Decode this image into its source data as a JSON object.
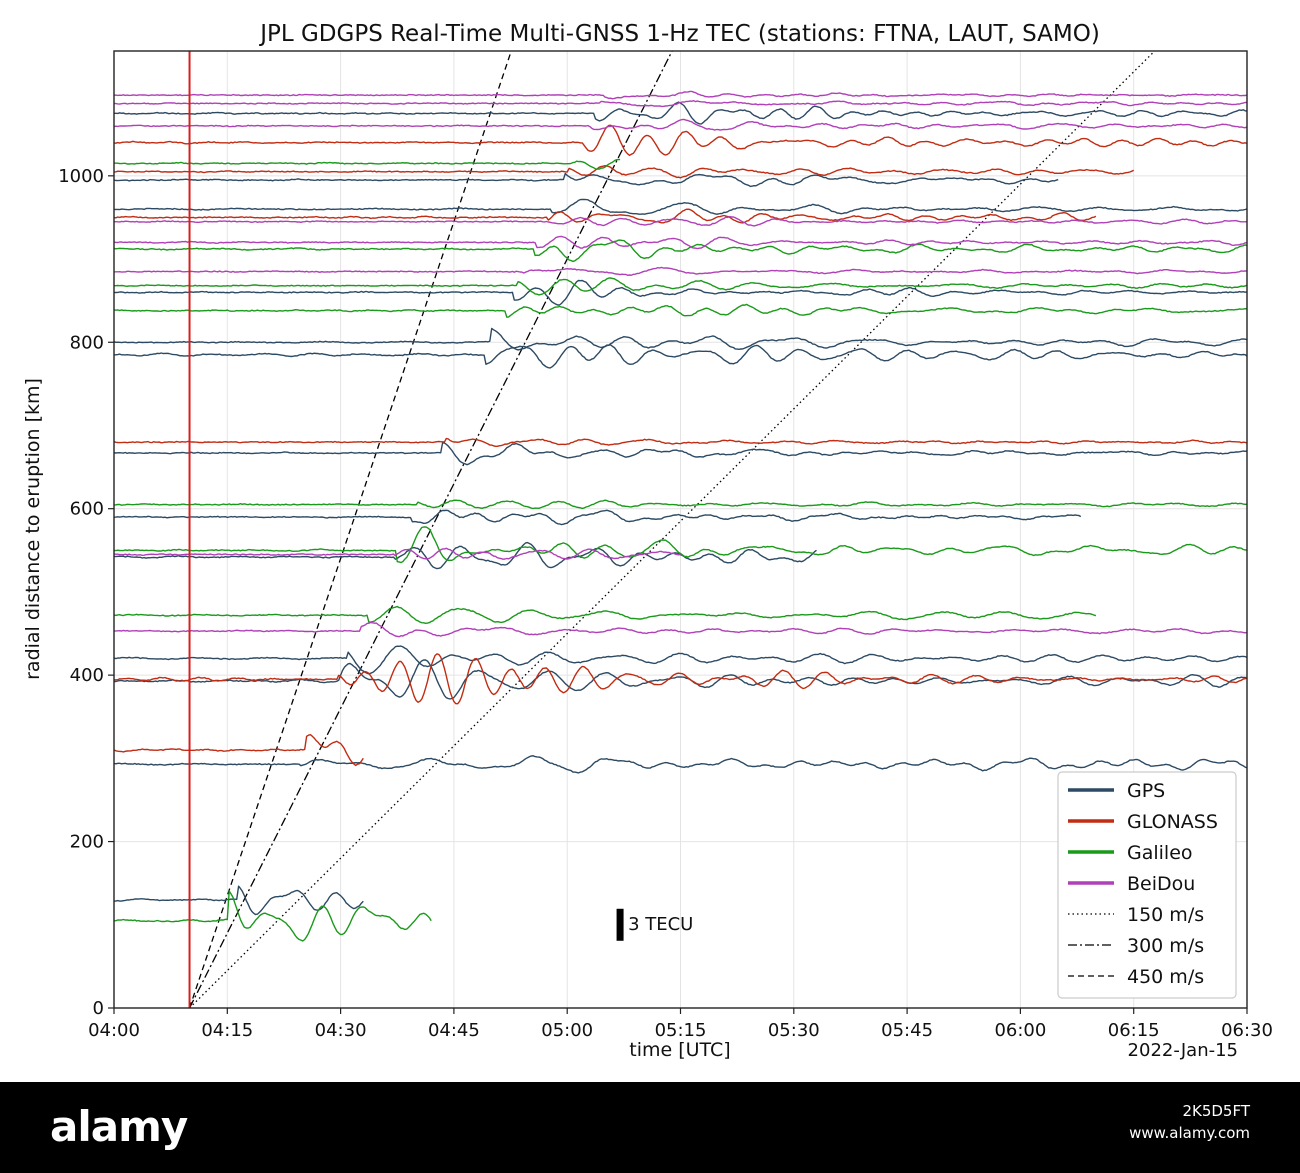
{
  "chart_data": {
    "type": "line",
    "title": "JPL GDGPS Real-Time Multi-GNSS 1-Hz TEC (stations: FTNA, LAUT, SAMO)",
    "xlabel": "time [UTC]",
    "ylabel": "radial distance to eruption [km]",
    "date_label": "2022-Jan-15",
    "xlim": [
      "04:00",
      "06:30"
    ],
    "ylim": [
      0,
      1150
    ],
    "x_ticks": [
      "04:00",
      "04:15",
      "04:30",
      "04:45",
      "05:00",
      "05:15",
      "05:30",
      "05:45",
      "06:00",
      "06:15",
      "06:30"
    ],
    "y_ticks": [
      0,
      200,
      400,
      600,
      800,
      1000
    ],
    "grid": true,
    "legend_position": "lower-right",
    "eruption_time": "04:10",
    "eruption_color": "#d62020",
    "scale_bar_label": "3 TECU",
    "scale_bar_time": "05:07",
    "scale_bar_center_km": 100,
    "colors": {
      "GPS": "#2c4a63",
      "GLONASS": "#c12c12",
      "Galileo": "#1a9a1a",
      "BeiDou": "#b040b8"
    },
    "speed_lines": [
      {
        "name": "150 m/s",
        "speed_mps": 150,
        "dash": "dotted"
      },
      {
        "name": "300 m/s",
        "speed_mps": 300,
        "dash": "dashdot"
      },
      {
        "name": "450 m/s",
        "speed_mps": 450,
        "dash": "dashed"
      }
    ],
    "series": [
      {
        "name": "GPS",
        "values": [
          {
            "distance_km": 130,
            "start": "04:00",
            "end": "04:33",
            "amplitude": 1.0
          },
          {
            "distance_km": 293,
            "start": "04:00",
            "end": "06:30",
            "amplitude": 1.0
          },
          {
            "distance_km": 393,
            "start": "04:00",
            "end": "06:30",
            "amplitude": 1.2
          },
          {
            "distance_km": 420,
            "start": "04:00",
            "end": "06:30",
            "amplitude": 1.2
          },
          {
            "distance_km": 542,
            "start": "04:00",
            "end": "05:33",
            "amplitude": 1.0
          },
          {
            "distance_km": 590,
            "start": "04:00",
            "end": "06:08",
            "amplitude": 0.8
          },
          {
            "distance_km": 667,
            "start": "04:00",
            "end": "06:30",
            "amplitude": 0.5
          },
          {
            "distance_km": 785,
            "start": "04:00",
            "end": "06:30",
            "amplitude": 1.0
          },
          {
            "distance_km": 800,
            "start": "04:00",
            "end": "06:30",
            "amplitude": 0.6
          },
          {
            "distance_km": 860,
            "start": "04:00",
            "end": "06:30",
            "amplitude": 0.6
          },
          {
            "distance_km": 960,
            "start": "04:00",
            "end": "06:30",
            "amplitude": 0.6
          },
          {
            "distance_km": 995,
            "start": "04:00",
            "end": "06:05",
            "amplitude": 0.6
          },
          {
            "distance_km": 1075,
            "start": "04:00",
            "end": "06:30",
            "amplitude": 0.7
          }
        ]
      },
      {
        "name": "GLONASS",
        "values": [
          {
            "distance_km": 310,
            "start": "04:00",
            "end": "04:33",
            "amplitude": 1.3
          },
          {
            "distance_km": 395,
            "start": "04:00",
            "end": "06:30",
            "amplitude": 1.5
          },
          {
            "distance_km": 680,
            "start": "04:00",
            "end": "06:30",
            "amplitude": 0.3
          },
          {
            "distance_km": 950,
            "start": "04:00",
            "end": "06:10",
            "amplitude": 0.6
          },
          {
            "distance_km": 1005,
            "start": "04:00",
            "end": "06:15",
            "amplitude": 0.6
          },
          {
            "distance_km": 1040,
            "start": "04:00",
            "end": "06:30",
            "amplitude": 0.8
          }
        ]
      },
      {
        "name": "Galileo",
        "values": [
          {
            "distance_km": 105,
            "start": "04:00",
            "end": "04:42",
            "amplitude": 1.3
          },
          {
            "distance_km": 472,
            "start": "04:00",
            "end": "06:10",
            "amplitude": 0.7
          },
          {
            "distance_km": 550,
            "start": "04:00",
            "end": "06:30",
            "amplitude": 1.0
          },
          {
            "distance_km": 605,
            "start": "04:00",
            "end": "06:30",
            "amplitude": 0.5
          },
          {
            "distance_km": 838,
            "start": "04:00",
            "end": "06:30",
            "amplitude": 0.7
          },
          {
            "distance_km": 868,
            "start": "04:00",
            "end": "06:30",
            "amplitude": 0.6
          },
          {
            "distance_km": 912,
            "start": "04:00",
            "end": "06:30",
            "amplitude": 1.0
          },
          {
            "distance_km": 1015,
            "start": "04:00",
            "end": "05:07",
            "amplitude": 0.7
          }
        ]
      },
      {
        "name": "BeiDou",
        "values": [
          {
            "distance_km": 453,
            "start": "04:00",
            "end": "06:30",
            "amplitude": 0.5
          },
          {
            "distance_km": 545,
            "start": "04:00",
            "end": "05:15",
            "amplitude": 0.6
          },
          {
            "distance_km": 885,
            "start": "04:00",
            "end": "06:30",
            "amplitude": 0.4
          },
          {
            "distance_km": 920,
            "start": "04:00",
            "end": "06:30",
            "amplitude": 0.5
          },
          {
            "distance_km": 945,
            "start": "04:00",
            "end": "06:30",
            "amplitude": 0.4
          },
          {
            "distance_km": 1060,
            "start": "04:00",
            "end": "06:30",
            "amplitude": 0.5
          },
          {
            "distance_km": 1087,
            "start": "04:00",
            "end": "06:30",
            "amplitude": 0.3
          },
          {
            "distance_km": 1097,
            "start": "04:00",
            "end": "06:30",
            "amplitude": 0.3
          }
        ]
      }
    ]
  },
  "footer": {
    "logo": "alamy",
    "image_id": "2K5D5FT",
    "site": "www.alamy.com"
  }
}
